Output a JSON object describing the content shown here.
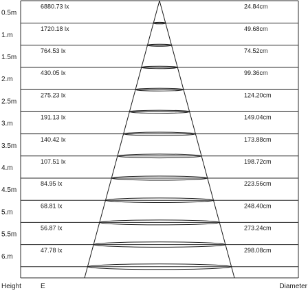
{
  "diagram": {
    "rows": [
      {
        "height": "0.5m",
        "illuminance": "6880.73 lx",
        "diameter": "24.84cm"
      },
      {
        "height": "1.m",
        "illuminance": "1720.18 lx",
        "diameter": "49.68cm"
      },
      {
        "height": "1.5m",
        "illuminance": "764.53 lx",
        "diameter": "74.52cm"
      },
      {
        "height": "2.m",
        "illuminance": "430.05 lx",
        "diameter": "99.36cm"
      },
      {
        "height": "2.5m",
        "illuminance": "275.23 lx",
        "diameter": "124.20cm"
      },
      {
        "height": "3.m",
        "illuminance": "191.13 lx",
        "diameter": "149.04cm"
      },
      {
        "height": "3.5m",
        "illuminance": "140.42 lx",
        "diameter": "173.88cm"
      },
      {
        "height": "4.m",
        "illuminance": "107.51 lx",
        "diameter": "198.72cm"
      },
      {
        "height": "4.5m",
        "illuminance": "84.95 lx",
        "diameter": "223.56cm"
      },
      {
        "height": "5.m",
        "illuminance": "68.81 lx",
        "diameter": "248.40cm"
      },
      {
        "height": "5.5m",
        "illuminance": "56.87 lx",
        "diameter": "273.24cm"
      },
      {
        "height": "6.m",
        "illuminance": "47.78 lx",
        "diameter": "298.08cm"
      }
    ],
    "footer": {
      "height_label": "Height",
      "illuminance_label": "E",
      "diameter_label": "Diameter"
    }
  }
}
